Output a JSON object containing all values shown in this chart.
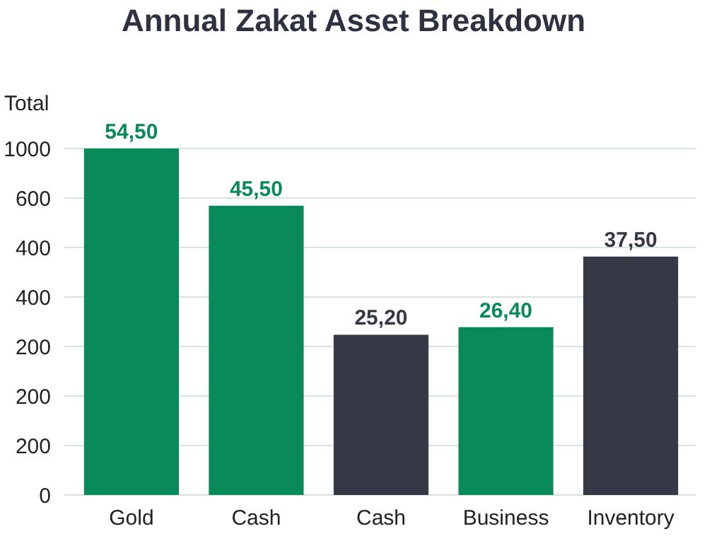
{
  "chart_data": {
    "type": "bar",
    "title": "Annual Zakat Asset Breakdown",
    "ylabel": "Total",
    "categories": [
      "Gold",
      "Cash",
      "Cash",
      "Business",
      "Inventory"
    ],
    "values": [
      54.5,
      45.5,
      25.2,
      26.4,
      37.5
    ],
    "value_labels": [
      "54,50",
      "45,50",
      "25,20",
      "26,40",
      "37,50"
    ],
    "colors": [
      "#098a5a",
      "#098a5a",
      "#363845",
      "#098a5a",
      "#363845"
    ],
    "annotations": [
      "0",
      "200",
      "200",
      "200",
      "400",
      "400",
      "600",
      "1000"
    ],
    "grid": "y"
  }
}
